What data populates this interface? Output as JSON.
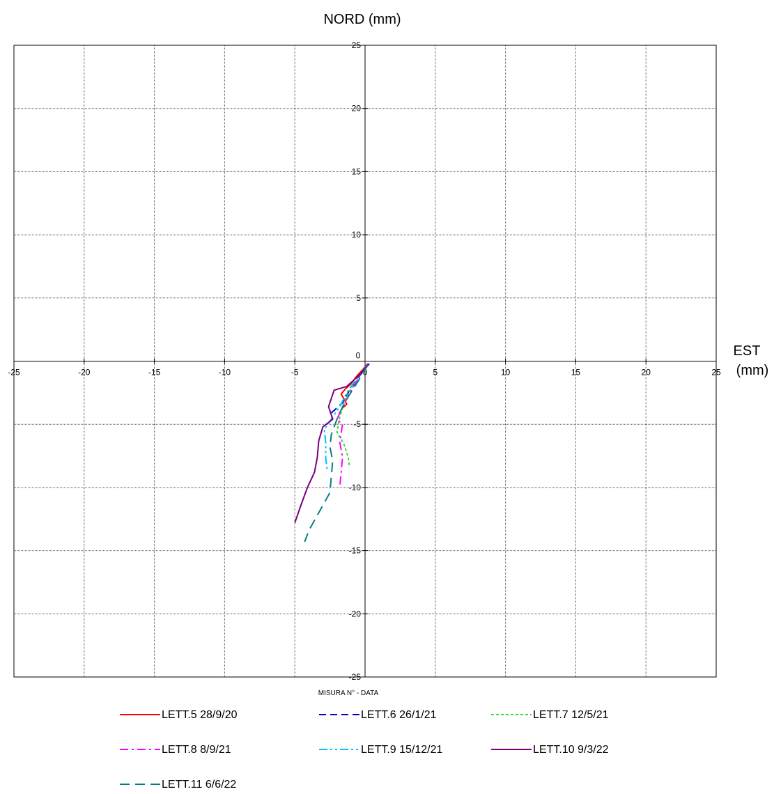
{
  "chart_data": {
    "type": "line",
    "title": "",
    "ylabel": "NORD (mm)",
    "xlabel_line1": "EST",
    "xlabel_line2": "(mm)",
    "legend_title": "MISURA N° - DATA",
    "xlim": [
      -25,
      25
    ],
    "ylim": [
      -25,
      25
    ],
    "xticks": [
      -25,
      -20,
      -15,
      -10,
      -5,
      0,
      5,
      10,
      15,
      20,
      25
    ],
    "yticks": [
      -25,
      -20,
      -15,
      -10,
      -5,
      0,
      5,
      10,
      15,
      20,
      25
    ],
    "grid": true,
    "legend_position": "bottom",
    "series": [
      {
        "name": "LETT.5 28/9/20",
        "color": "#ff0000",
        "dash": "solid",
        "points": [
          [
            0.2,
            -0.2
          ],
          [
            -0.2,
            -0.7
          ],
          [
            -0.6,
            -1.2
          ],
          [
            -1.0,
            -1.8
          ],
          [
            -1.4,
            -2.2
          ],
          [
            -1.7,
            -2.6
          ],
          [
            -1.5,
            -3.0
          ],
          [
            -1.3,
            -3.4
          ],
          [
            -1.6,
            -3.7
          ]
        ]
      },
      {
        "name": "LETT.6 26/1/21",
        "color": "#0000cc",
        "dash": "dash",
        "points": [
          [
            0.3,
            -0.2
          ],
          [
            -0.2,
            -0.9
          ],
          [
            -0.6,
            -1.5
          ],
          [
            -1.0,
            -2.1
          ],
          [
            -1.3,
            -2.7
          ],
          [
            -1.6,
            -3.3
          ],
          [
            -2.0,
            -3.7
          ],
          [
            -2.4,
            -4.1
          ]
        ]
      },
      {
        "name": "LETT.7 12/5/21",
        "color": "#33dd33",
        "dash": "dot",
        "points": [
          [
            0.1,
            -0.3
          ],
          [
            -0.3,
            -0.9
          ],
          [
            -0.8,
            -1.8
          ],
          [
            -1.4,
            -3.0
          ],
          [
            -1.8,
            -4.4
          ],
          [
            -2.0,
            -5.6
          ],
          [
            -1.5,
            -6.6
          ],
          [
            -1.2,
            -7.6
          ],
          [
            -1.1,
            -8.4
          ]
        ]
      },
      {
        "name": "LETT.8 8/9/21",
        "color": "#ff00ff",
        "dash": "dashdot",
        "points": [
          [
            0.1,
            -0.3
          ],
          [
            -0.4,
            -1.2
          ],
          [
            -1.0,
            -2.4
          ],
          [
            -1.6,
            -3.6
          ],
          [
            -2.0,
            -4.6
          ],
          [
            -1.6,
            -5.0
          ],
          [
            -1.8,
            -6.4
          ],
          [
            -1.6,
            -7.6
          ],
          [
            -1.7,
            -8.8
          ],
          [
            -1.8,
            -10.0
          ]
        ]
      },
      {
        "name": "LETT.9 15/12/21",
        "color": "#00bfff",
        "dash": "dashdotdot",
        "points": [
          [
            0.2,
            -0.3
          ],
          [
            -0.6,
            -1.4
          ],
          [
            -1.3,
            -2.5
          ],
          [
            -1.8,
            -3.6
          ],
          [
            -2.4,
            -4.6
          ],
          [
            -2.9,
            -5.4
          ],
          [
            -2.8,
            -6.5
          ],
          [
            -2.8,
            -7.7
          ],
          [
            -2.7,
            -8.6
          ]
        ]
      },
      {
        "name": "LETT.10 9/3/22",
        "color": "#7a007a",
        "dash": "solid",
        "points": [
          [
            0.2,
            -0.3
          ],
          [
            -0.5,
            -1.2
          ],
          [
            -1.3,
            -2.0
          ],
          [
            -2.2,
            -2.3
          ],
          [
            -2.6,
            -3.6
          ],
          [
            -2.3,
            -4.6
          ],
          [
            -3.0,
            -5.2
          ],
          [
            -3.3,
            -6.3
          ],
          [
            -3.4,
            -7.6
          ],
          [
            -3.6,
            -8.8
          ],
          [
            -4.1,
            -10.0
          ],
          [
            -4.6,
            -11.5
          ],
          [
            -5.0,
            -12.8
          ]
        ]
      },
      {
        "name": "LETT.11 6/6/22",
        "color": "#008080",
        "dash": "longdash",
        "points": [
          [
            0.2,
            -0.3
          ],
          [
            -0.5,
            -1.6
          ],
          [
            -1.3,
            -3.0
          ],
          [
            -1.9,
            -4.3
          ],
          [
            -2.4,
            -5.8
          ],
          [
            -2.5,
            -6.8
          ],
          [
            -2.3,
            -7.9
          ],
          [
            -2.4,
            -9.1
          ],
          [
            -2.5,
            -10.4
          ],
          [
            -3.2,
            -11.8
          ],
          [
            -4.0,
            -13.4
          ],
          [
            -4.3,
            -14.3
          ]
        ]
      }
    ]
  }
}
